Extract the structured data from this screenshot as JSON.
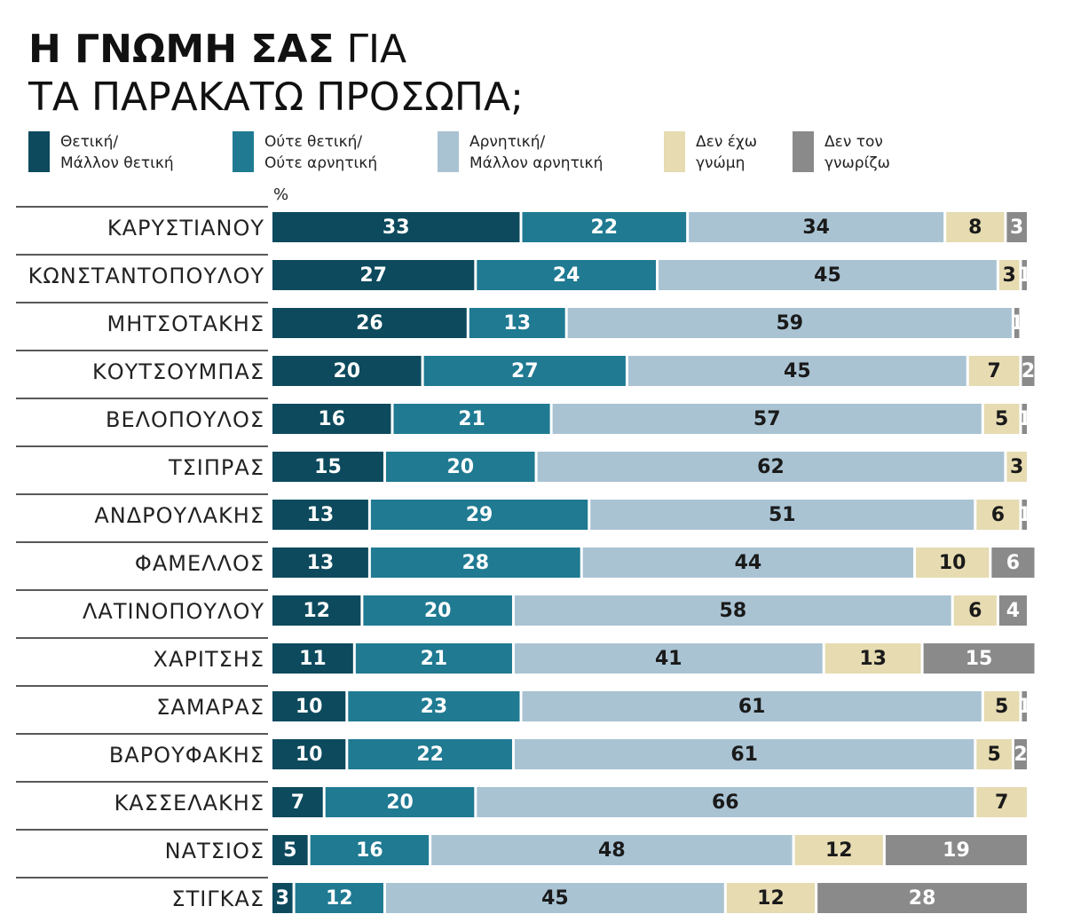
{
  "chart_data": {
    "type": "stacked-bar",
    "title_parts": [
      "Η ΓΝΩΜΗ ΣΑΣ",
      "ΓΙΑ",
      "ΤΑ ΠΑΡΑΚΑΤΩ ΠΡΟΣΩΠΑ;"
    ],
    "unit_label": "%",
    "xlim": [
      0,
      100
    ],
    "categories": [
      "ΚΑΡΥΣΤΙΑΝΟΥ",
      "ΚΩΝΣΤΑΝΤΟΠΟΥΛΟΥ",
      "ΜΗΤΣΟΤΑΚΗΣ",
      "ΚΟΥΤΣΟΥΜΠΑΣ",
      "ΒΕΛΟΠΟΥΛΟΣ",
      "ΤΣΙΠΡΑΣ",
      "ΑΝΔΡΟΥΛΑΚΗΣ",
      "ΦΑΜΕΛΛΟΣ",
      "ΛΑΤΙΝΟΠΟΥΛΟΥ",
      "ΧΑΡΙΤΣΗΣ",
      "ΣΑΜΑΡΑΣ",
      "ΒΑΡΟΥΦΑΚΗΣ",
      "ΚΑΣΣΕΛΑΚΗΣ",
      "ΝΑΤΣΙΟΣ",
      "ΣΤΙΓΚΑΣ"
    ],
    "series": [
      {
        "name": "Θετική/\nΜάλλον θετική",
        "color": "#0d4a5d",
        "label_color": "#ffffff",
        "values": [
          33,
          27,
          26,
          20,
          16,
          15,
          13,
          13,
          12,
          11,
          10,
          10,
          7,
          5,
          3
        ]
      },
      {
        "name": "Ούτε θετική/\nΟύτε αρνητική",
        "color": "#1f7a92",
        "label_color": "#ffffff",
        "values": [
          22,
          24,
          13,
          27,
          21,
          20,
          29,
          28,
          20,
          21,
          23,
          22,
          20,
          16,
          12
        ]
      },
      {
        "name": "Αρνητική/\nΜάλλον αρνητική",
        "color": "#a9c3d3",
        "label_color": "#1a1a1a",
        "values": [
          34,
          45,
          59,
          45,
          57,
          62,
          51,
          44,
          58,
          41,
          61,
          61,
          66,
          48,
          45
        ]
      },
      {
        "name": "Δεν έχω\nγνώμη",
        "color": "#e6dbb1",
        "label_color": "#1a1a1a",
        "values": [
          8,
          3,
          null,
          7,
          5,
          3,
          6,
          10,
          6,
          13,
          5,
          5,
          7,
          12,
          12
        ]
      },
      {
        "name": "Δεν τον\nγνωρίζω",
        "color": "#8a8a8a",
        "label_color": "#ffffff",
        "values": [
          3,
          1,
          1,
          2,
          1,
          null,
          1,
          6,
          4,
          15,
          1,
          2,
          null,
          19,
          28
        ]
      }
    ]
  }
}
